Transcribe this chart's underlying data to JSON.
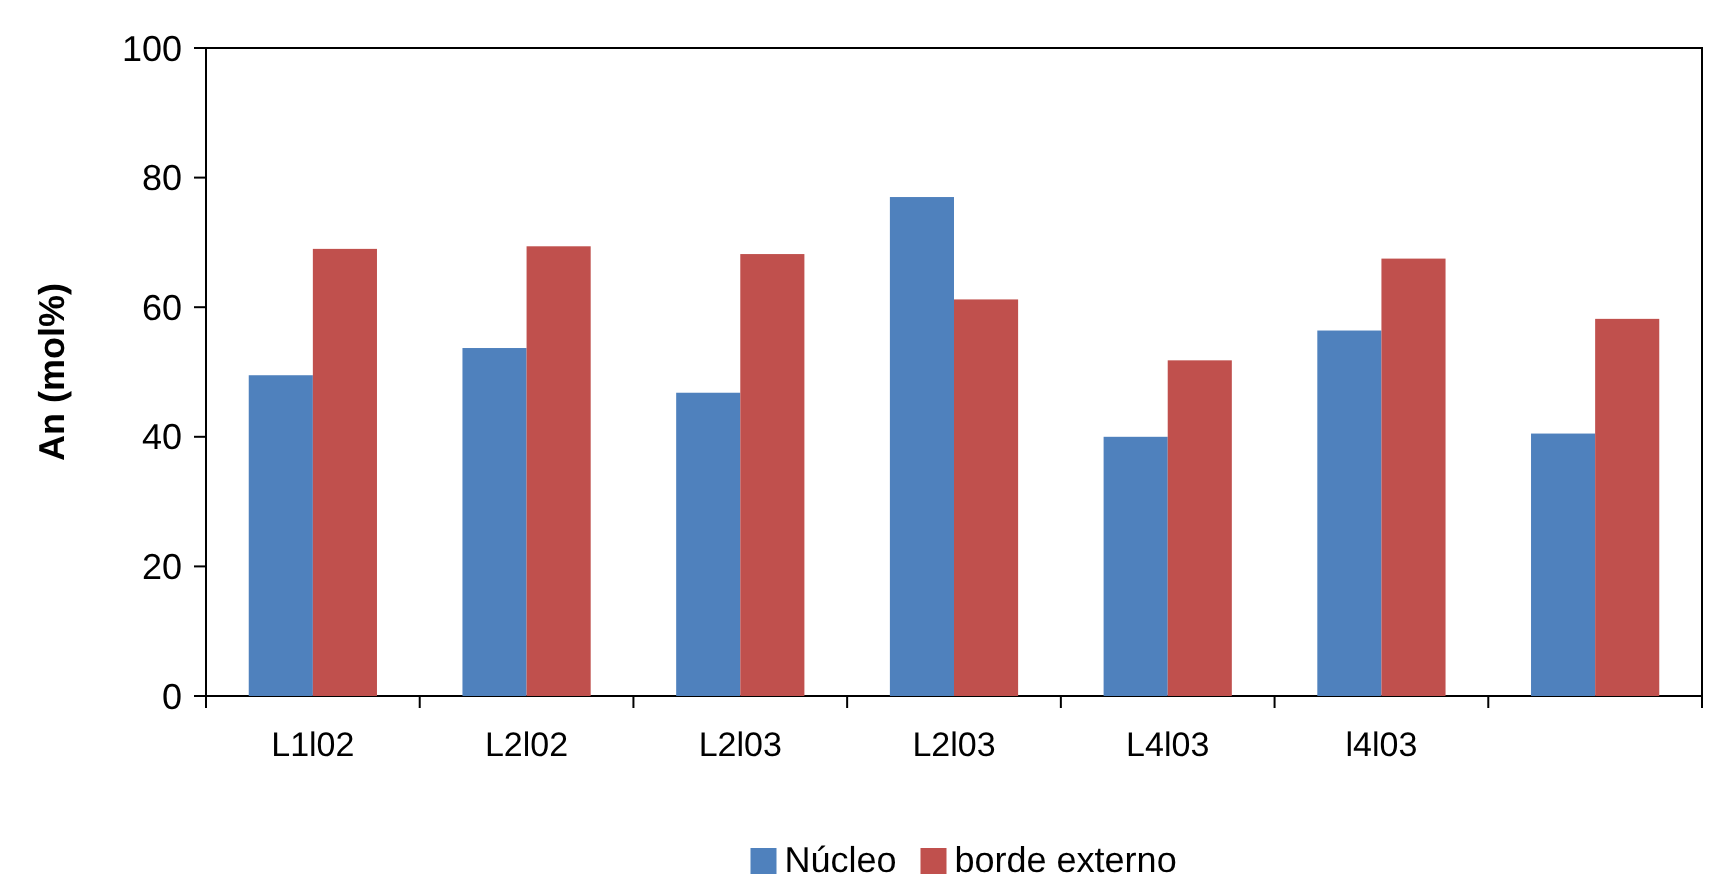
{
  "chart_data": {
    "type": "bar",
    "ylabel": "An (mol%)",
    "categories": [
      "L1l02",
      "L2l02",
      "L2l03",
      "L2l03",
      "L4l03",
      "l4l03",
      null
    ],
    "series": [
      {
        "name": "Núcleo",
        "color": "#4f81bd",
        "values": [
          49.5,
          53.7,
          46.8,
          77,
          40,
          56.4,
          40.5
        ]
      },
      {
        "name": "borde externo",
        "color": "#c0504d",
        "values": [
          69,
          69.4,
          68.2,
          61.2,
          51.8,
          67.5,
          58.2
        ]
      }
    ],
    "ylim": [
      0,
      100
    ],
    "yticks": [
      0,
      20,
      40,
      60,
      80,
      100
    ],
    "grid": false,
    "legend": "bottom"
  }
}
